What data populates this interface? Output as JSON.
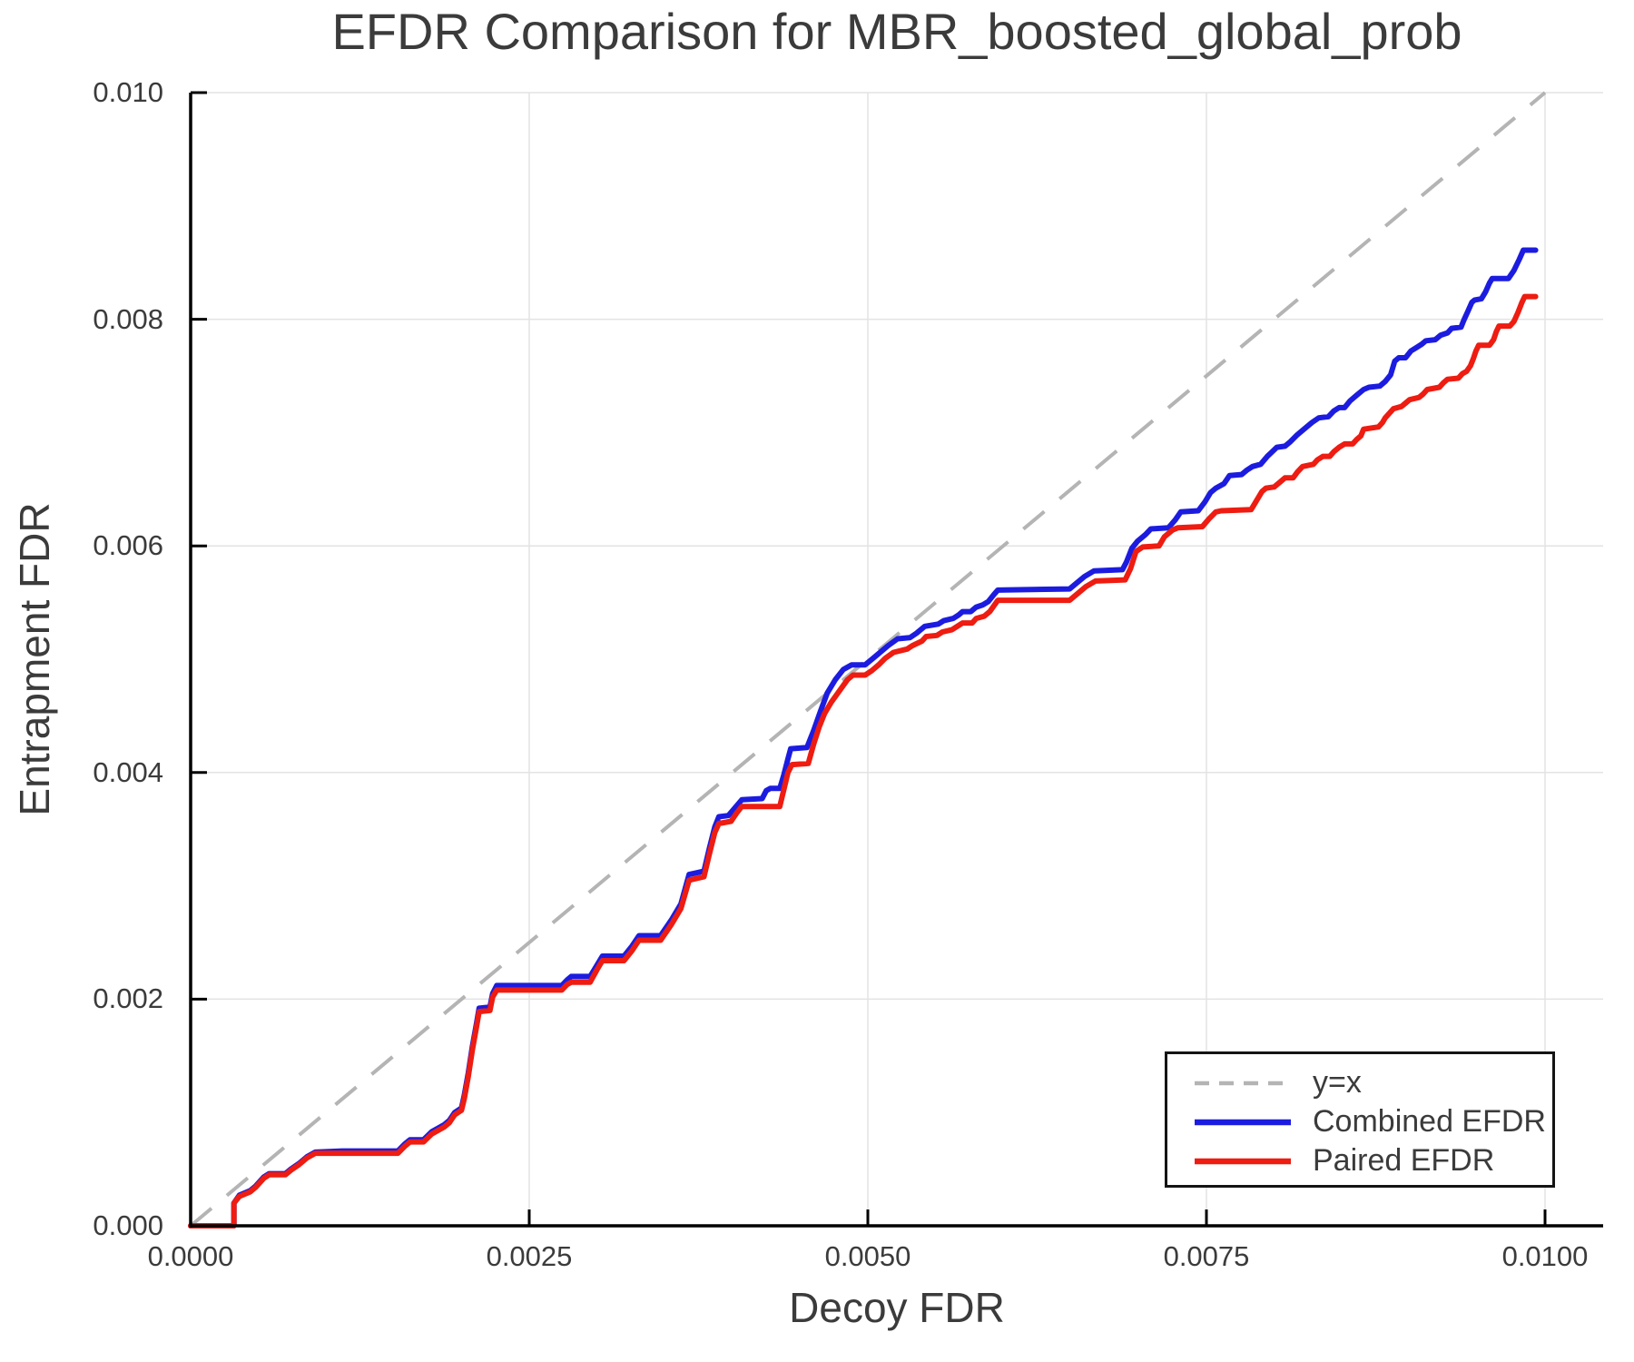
{
  "chart_data": {
    "type": "line",
    "title": "EFDR Comparison for MBR_boosted_global_prob",
    "xlabel": "Decoy FDR",
    "ylabel": "Entrapment FDR",
    "xlim": [
      0.0,
      0.0104
    ],
    "ylim": [
      0.0,
      0.01
    ],
    "x_ticks": [
      0.0,
      0.0025,
      0.005,
      0.0075,
      0.01
    ],
    "x_tick_labels": [
      "0.0000",
      "0.0025",
      "0.0050",
      "0.0075",
      "0.0100"
    ],
    "y_ticks": [
      0.0,
      0.002,
      0.004,
      0.006,
      0.008,
      0.01
    ],
    "y_tick_labels": [
      "0.000",
      "0.002",
      "0.004",
      "0.006",
      "0.008",
      "0.010"
    ],
    "grid": true,
    "grid_color": "#e3e3e3",
    "axis_color": "#000000",
    "legend": {
      "position": "lower right",
      "entries": [
        {
          "label": "y=x",
          "color": "#b4b4b4",
          "line_style": "dashed"
        },
        {
          "label": "Combined EFDR",
          "color": "#1c1ce0",
          "line_style": "solid"
        },
        {
          "label": "Paired EFDR",
          "color": "#ee1c11",
          "line_style": "solid"
        }
      ]
    },
    "identity_line": {
      "label": "y=x",
      "color": "#b4b4b4",
      "style": "dashed",
      "x": [
        0.0,
        0.01
      ],
      "y": [
        0.0,
        0.01
      ]
    },
    "points_unit": 0.0001,
    "series": [
      {
        "name": "Combined EFDR",
        "color": "#1c1ce0",
        "points": [
          [
            0,
            0
          ],
          [
            3.2,
            0
          ],
          [
            3.2,
            2
          ],
          [
            3.6,
            2.7
          ],
          [
            4.0,
            2.9
          ],
          [
            4.4,
            3.1
          ],
          [
            4.8,
            3.5
          ],
          [
            5.4,
            4.3
          ],
          [
            5.8,
            4.6
          ],
          [
            7.0,
            4.6
          ],
          [
            7.4,
            5.0
          ],
          [
            8.0,
            5.5
          ],
          [
            8.6,
            6.1
          ],
          [
            9.2,
            6.5
          ],
          [
            11.2,
            6.6
          ],
          [
            15.3,
            6.6
          ],
          [
            15.8,
            7.2
          ],
          [
            16.2,
            7.6
          ],
          [
            17.2,
            7.6
          ],
          [
            17.8,
            8.3
          ],
          [
            18.7,
            8.9
          ],
          [
            19.1,
            9.3
          ],
          [
            19.5,
            10.0
          ],
          [
            20.0,
            10.4
          ],
          [
            20.2,
            11.5
          ],
          [
            20.5,
            13.5
          ],
          [
            20.8,
            15.8
          ],
          [
            21.1,
            17.8
          ],
          [
            21.3,
            19.2
          ],
          [
            22.1,
            19.3
          ],
          [
            22.3,
            20.5
          ],
          [
            22.6,
            21.2
          ],
          [
            27.4,
            21.2
          ],
          [
            27.8,
            21.7
          ],
          [
            28.1,
            22.0
          ],
          [
            29.5,
            22.0
          ],
          [
            30.0,
            23.0
          ],
          [
            30.4,
            23.8
          ],
          [
            32.0,
            23.8
          ],
          [
            32.6,
            24.7
          ],
          [
            33.1,
            25.6
          ],
          [
            34.7,
            25.6
          ],
          [
            35.5,
            27.0
          ],
          [
            36.2,
            28.4
          ],
          [
            36.8,
            31.0
          ],
          [
            37.9,
            31.3
          ],
          [
            38.3,
            33.3
          ],
          [
            38.7,
            35.2
          ],
          [
            39.0,
            36.1
          ],
          [
            39.7,
            36.2
          ],
          [
            40.2,
            36.9
          ],
          [
            40.7,
            37.6
          ],
          [
            42.2,
            37.7
          ],
          [
            42.5,
            38.4
          ],
          [
            42.8,
            38.6
          ],
          [
            43.5,
            38.6
          ],
          [
            43.8,
            39.8
          ],
          [
            44.1,
            41.2
          ],
          [
            44.3,
            42.1
          ],
          [
            45.5,
            42.2
          ],
          [
            46.0,
            43.7
          ],
          [
            46.5,
            45.4
          ],
          [
            47.0,
            47.0
          ],
          [
            47.6,
            48.2
          ],
          [
            48.2,
            49.1
          ],
          [
            48.8,
            49.5
          ],
          [
            49.8,
            49.5
          ],
          [
            50.4,
            50.1
          ],
          [
            51.0,
            50.7
          ],
          [
            51.5,
            51.2
          ],
          [
            52.2,
            51.8
          ],
          [
            53.1,
            51.9
          ],
          [
            53.6,
            52.3
          ],
          [
            54.2,
            52.9
          ],
          [
            55.2,
            53.1
          ],
          [
            55.6,
            53.4
          ],
          [
            56.3,
            53.6
          ],
          [
            56.7,
            53.9
          ],
          [
            57.0,
            54.2
          ],
          [
            57.6,
            54.2
          ],
          [
            58.0,
            54.6
          ],
          [
            58.5,
            54.8
          ],
          [
            58.9,
            55.1
          ],
          [
            59.3,
            55.7
          ],
          [
            59.6,
            56.1
          ],
          [
            64.9,
            56.2
          ],
          [
            65.5,
            56.8
          ],
          [
            66.0,
            57.3
          ],
          [
            66.7,
            57.8
          ],
          [
            68.8,
            57.9
          ],
          [
            69.1,
            58.6
          ],
          [
            69.5,
            59.8
          ],
          [
            69.9,
            60.4
          ],
          [
            70.5,
            61.0
          ],
          [
            70.9,
            61.5
          ],
          [
            72.2,
            61.6
          ],
          [
            72.7,
            62.3
          ],
          [
            73.1,
            63.0
          ],
          [
            74.4,
            63.1
          ],
          [
            74.9,
            63.9
          ],
          [
            75.3,
            64.7
          ],
          [
            75.7,
            65.1
          ],
          [
            76.3,
            65.5
          ],
          [
            76.7,
            66.2
          ],
          [
            77.6,
            66.3
          ],
          [
            78.0,
            66.7
          ],
          [
            78.4,
            67.0
          ],
          [
            79.0,
            67.2
          ],
          [
            79.5,
            67.9
          ],
          [
            80.2,
            68.7
          ],
          [
            80.8,
            68.8
          ],
          [
            81.2,
            69.2
          ],
          [
            81.7,
            69.8
          ],
          [
            82.2,
            70.3
          ],
          [
            82.8,
            70.9
          ],
          [
            83.3,
            71.3
          ],
          [
            84.0,
            71.4
          ],
          [
            84.4,
            71.9
          ],
          [
            84.8,
            72.2
          ],
          [
            85.2,
            72.2
          ],
          [
            85.6,
            72.8
          ],
          [
            86.1,
            73.3
          ],
          [
            86.6,
            73.8
          ],
          [
            87.0,
            74.0
          ],
          [
            87.8,
            74.1
          ],
          [
            88.2,
            74.5
          ],
          [
            88.6,
            75.1
          ],
          [
            88.9,
            76.3
          ],
          [
            89.2,
            76.6
          ],
          [
            89.7,
            76.6
          ],
          [
            90.1,
            77.2
          ],
          [
            90.5,
            77.5
          ],
          [
            90.9,
            77.8
          ],
          [
            91.2,
            78.1
          ],
          [
            91.9,
            78.2
          ],
          [
            92.3,
            78.6
          ],
          [
            92.8,
            78.8
          ],
          [
            93.1,
            79.2
          ],
          [
            93.8,
            79.3
          ],
          [
            94.0,
            79.9
          ],
          [
            94.3,
            80.7
          ],
          [
            94.6,
            81.5
          ],
          [
            94.8,
            81.7
          ],
          [
            95.3,
            81.8
          ],
          [
            95.6,
            82.4
          ],
          [
            95.9,
            83.2
          ],
          [
            96.1,
            83.6
          ],
          [
            97.3,
            83.6
          ],
          [
            97.7,
            84.3
          ],
          [
            98.1,
            85.3
          ],
          [
            98.4,
            86.1
          ],
          [
            99.3,
            86.1
          ]
        ]
      },
      {
        "name": "Paired EFDR",
        "color": "#ee1c11",
        "points": [
          [
            0,
            0
          ],
          [
            3.2,
            0
          ],
          [
            3.2,
            2
          ],
          [
            3.6,
            2.6
          ],
          [
            4.0,
            2.8
          ],
          [
            4.4,
            3.0
          ],
          [
            4.8,
            3.4
          ],
          [
            5.4,
            4.2
          ],
          [
            5.8,
            4.5
          ],
          [
            7.0,
            4.5
          ],
          [
            7.4,
            4.9
          ],
          [
            8.0,
            5.4
          ],
          [
            8.6,
            6.0
          ],
          [
            9.2,
            6.4
          ],
          [
            15.3,
            6.4
          ],
          [
            15.8,
            7.0
          ],
          [
            16.2,
            7.4
          ],
          [
            17.2,
            7.4
          ],
          [
            17.8,
            8.1
          ],
          [
            18.7,
            8.7
          ],
          [
            19.1,
            9.1
          ],
          [
            19.5,
            9.8
          ],
          [
            20.0,
            10.2
          ],
          [
            20.2,
            11.2
          ],
          [
            20.5,
            13.2
          ],
          [
            20.8,
            15.5
          ],
          [
            21.1,
            17.5
          ],
          [
            21.3,
            18.9
          ],
          [
            22.1,
            19.0
          ],
          [
            22.3,
            20.2
          ],
          [
            22.6,
            20.8
          ],
          [
            27.4,
            20.8
          ],
          [
            27.8,
            21.3
          ],
          [
            28.1,
            21.5
          ],
          [
            29.5,
            21.5
          ],
          [
            30.0,
            22.6
          ],
          [
            30.4,
            23.4
          ],
          [
            32.0,
            23.4
          ],
          [
            32.6,
            24.3
          ],
          [
            33.1,
            25.2
          ],
          [
            34.7,
            25.2
          ],
          [
            35.5,
            26.6
          ],
          [
            36.2,
            28.0
          ],
          [
            36.8,
            30.5
          ],
          [
            37.9,
            30.8
          ],
          [
            38.3,
            32.8
          ],
          [
            38.7,
            34.7
          ],
          [
            39.0,
            35.5
          ],
          [
            39.9,
            35.7
          ],
          [
            40.3,
            36.4
          ],
          [
            40.7,
            37.0
          ],
          [
            43.5,
            37.0
          ],
          [
            43.8,
            38.5
          ],
          [
            44.1,
            40.0
          ],
          [
            44.4,
            40.7
          ],
          [
            45.6,
            40.8
          ],
          [
            46.0,
            42.5
          ],
          [
            46.4,
            44.0
          ],
          [
            46.8,
            45.2
          ],
          [
            47.3,
            46.2
          ],
          [
            47.9,
            47.2
          ],
          [
            48.5,
            48.2
          ],
          [
            48.9,
            48.6
          ],
          [
            49.8,
            48.6
          ],
          [
            50.3,
            49.0
          ],
          [
            50.8,
            49.5
          ],
          [
            51.3,
            50.1
          ],
          [
            51.9,
            50.6
          ],
          [
            52.9,
            50.9
          ],
          [
            53.3,
            51.2
          ],
          [
            54.0,
            51.6
          ],
          [
            54.3,
            52.0
          ],
          [
            55.1,
            52.1
          ],
          [
            55.5,
            52.4
          ],
          [
            56.2,
            52.6
          ],
          [
            56.6,
            52.9
          ],
          [
            57.0,
            53.2
          ],
          [
            57.7,
            53.2
          ],
          [
            58.0,
            53.6
          ],
          [
            58.6,
            53.8
          ],
          [
            59.0,
            54.2
          ],
          [
            59.3,
            54.7
          ],
          [
            59.6,
            55.2
          ],
          [
            64.9,
            55.2
          ],
          [
            65.5,
            55.8
          ],
          [
            66.1,
            56.4
          ],
          [
            66.8,
            56.9
          ],
          [
            69.0,
            57.0
          ],
          [
            69.4,
            58.0
          ],
          [
            69.8,
            59.5
          ],
          [
            70.3,
            59.9
          ],
          [
            71.5,
            60.0
          ],
          [
            71.9,
            60.8
          ],
          [
            72.5,
            61.4
          ],
          [
            72.9,
            61.6
          ],
          [
            74.7,
            61.7
          ],
          [
            75.2,
            62.4
          ],
          [
            75.7,
            63.0
          ],
          [
            76.1,
            63.1
          ],
          [
            78.3,
            63.2
          ],
          [
            78.7,
            64.0
          ],
          [
            79.1,
            64.8
          ],
          [
            79.4,
            65.1
          ],
          [
            80.0,
            65.2
          ],
          [
            80.4,
            65.6
          ],
          [
            80.8,
            66.0
          ],
          [
            81.4,
            66.0
          ],
          [
            81.7,
            66.5
          ],
          [
            82.1,
            67.0
          ],
          [
            82.9,
            67.2
          ],
          [
            83.2,
            67.6
          ],
          [
            83.6,
            67.9
          ],
          [
            84.1,
            67.9
          ],
          [
            84.4,
            68.3
          ],
          [
            84.8,
            68.7
          ],
          [
            85.2,
            69.0
          ],
          [
            85.8,
            69.0
          ],
          [
            86.1,
            69.4
          ],
          [
            86.4,
            69.7
          ],
          [
            86.6,
            70.3
          ],
          [
            87.7,
            70.5
          ],
          [
            88.0,
            70.9
          ],
          [
            88.2,
            71.3
          ],
          [
            88.5,
            71.7
          ],
          [
            88.8,
            72.1
          ],
          [
            89.4,
            72.3
          ],
          [
            89.7,
            72.6
          ],
          [
            90.0,
            72.9
          ],
          [
            90.7,
            73.1
          ],
          [
            91.0,
            73.4
          ],
          [
            91.3,
            73.8
          ],
          [
            92.2,
            74.0
          ],
          [
            92.5,
            74.4
          ],
          [
            92.8,
            74.7
          ],
          [
            93.6,
            74.8
          ],
          [
            93.9,
            75.2
          ],
          [
            94.2,
            75.4
          ],
          [
            94.5,
            75.9
          ],
          [
            94.7,
            76.5
          ],
          [
            94.9,
            77.2
          ],
          [
            95.1,
            77.7
          ],
          [
            95.9,
            77.7
          ],
          [
            96.2,
            78.2
          ],
          [
            96.4,
            78.9
          ],
          [
            96.6,
            79.4
          ],
          [
            97.4,
            79.4
          ],
          [
            97.7,
            79.8
          ],
          [
            98.0,
            80.6
          ],
          [
            98.3,
            81.5
          ],
          [
            98.5,
            82.0
          ],
          [
            99.3,
            82.0
          ]
        ]
      }
    ]
  }
}
